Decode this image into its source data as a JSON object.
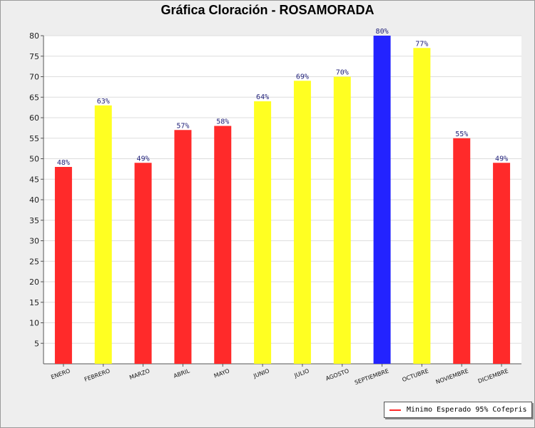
{
  "colors": {
    "below": "#ff2a2a",
    "meets": "#ffff22",
    "max": "#2323ff",
    "label": "#22227a"
  },
  "chart_data": {
    "type": "bar",
    "title": "Gráfica Cloración - ROSAMORADA",
    "xlabel": "",
    "ylabel": "",
    "ylim": [
      0,
      80
    ],
    "yticks": [
      5,
      10,
      15,
      20,
      25,
      30,
      35,
      40,
      45,
      50,
      55,
      60,
      65,
      70,
      75,
      80
    ],
    "grid": true,
    "categories": [
      "ENERO",
      "FEBRERO",
      "MARZO",
      "ABRIL",
      "MAYO",
      "JUNIO",
      "JULIO",
      "AGOSTO",
      "SEPTIEMBRE",
      "OCTUBRE",
      "NOVIEMBRE",
      "DICIEMBRE"
    ],
    "values": [
      48,
      63,
      49,
      57,
      58,
      64,
      69,
      70,
      80,
      77,
      55,
      49
    ],
    "value_labels": [
      "48%",
      "63%",
      "49%",
      "57%",
      "58%",
      "64%",
      "69%",
      "70%",
      "80%",
      "77%",
      "55%",
      "49%"
    ],
    "bar_colors": [
      "#ff2a2a",
      "#ffff22",
      "#ff2a2a",
      "#ff2a2a",
      "#ff2a2a",
      "#ffff22",
      "#ffff22",
      "#ffff22",
      "#2323ff",
      "#ffff22",
      "#ff2a2a",
      "#ff2a2a"
    ],
    "legend": [
      {
        "label": "Minimo Esperado 95% Cofepris",
        "color": "#ff2a2a"
      }
    ],
    "legend_position": "bottom-right"
  }
}
